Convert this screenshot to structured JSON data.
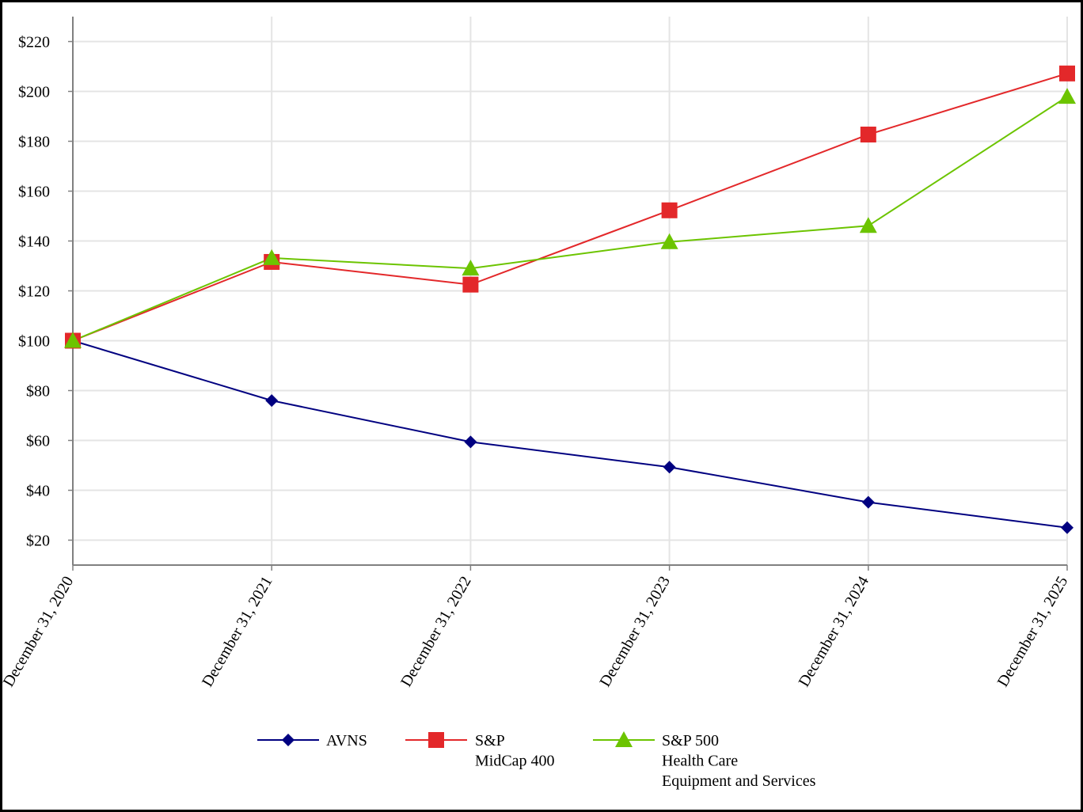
{
  "chart_data": {
    "type": "line",
    "title": "",
    "xlabel": "",
    "ylabel": "",
    "categories": [
      "December 31, 2020",
      "December 31, 2021",
      "December 31, 2022",
      "December 31, 2023",
      "December 31, 2024",
      "December 31, 2025"
    ],
    "ylim": [
      10,
      230
    ],
    "yticks": [
      20,
      40,
      60,
      80,
      100,
      120,
      140,
      160,
      180,
      200,
      220
    ],
    "ytick_labels": [
      "$20",
      "$40",
      "$60",
      "$80",
      "$100",
      "$120",
      "$140",
      "$160",
      "$180",
      "$200",
      "$220"
    ],
    "grid": true,
    "legend_position": "bottom-center",
    "series": [
      {
        "name": "AVNS",
        "legend_lines": [
          "AVNS"
        ],
        "color": "#000080",
        "marker": "diamond",
        "values": [
          100,
          76,
          59.4,
          49.3,
          35.2,
          25
        ]
      },
      {
        "name": "S&P MidCap 400",
        "legend_lines": [
          "S&P",
          "MidCap 400"
        ],
        "color": "#e3282a",
        "marker": "square",
        "values": [
          100,
          131.6,
          122.5,
          152.3,
          182.7,
          207.2
        ]
      },
      {
        "name": "S&P 500 Health Care Equipment and Services",
        "legend_lines": [
          "S&P 500",
          "Health Care",
          "Equipment and Services"
        ],
        "color": "#6cc400",
        "marker": "triangle",
        "values": [
          100,
          133.2,
          129,
          139.6,
          146.1,
          197.9
        ]
      }
    ]
  }
}
